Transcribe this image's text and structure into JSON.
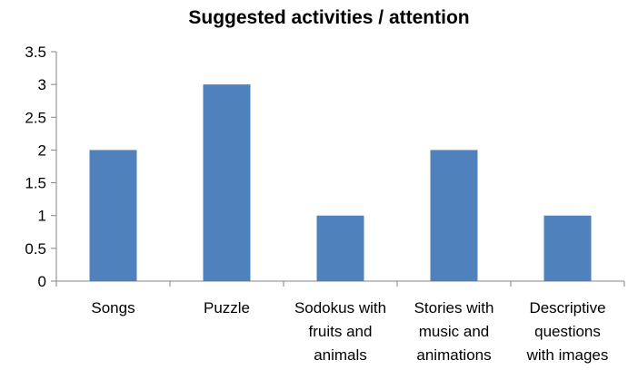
{
  "chart_data": {
    "type": "bar",
    "title": "Suggested activities / attention",
    "xlabel": "",
    "ylabel": "",
    "categories": [
      "Songs",
      "Puzzle",
      "Sodokus with fruits and animals",
      "Stories with music and animations",
      "Descriptive questions with images"
    ],
    "category_lines": [
      [
        "Songs"
      ],
      [
        "Puzzle"
      ],
      [
        "Sodokus with",
        "fruits and",
        "animals"
      ],
      [
        "Stories with",
        "music and",
        "animations"
      ],
      [
        "Descriptive",
        "questions",
        "with images"
      ]
    ],
    "values": [
      2,
      3,
      1,
      2,
      1
    ],
    "ylim": [
      0,
      3.5
    ],
    "yticks": [
      0,
      0.5,
      1,
      1.5,
      2,
      2.5,
      3,
      3.5
    ],
    "ytick_labels": [
      "0",
      "0.5",
      "1",
      "1.5",
      "2",
      "2.5",
      "3",
      "3.5"
    ],
    "grid": false,
    "legend": "none",
    "colors": {
      "bar": "#4F81BD",
      "axis": "#868686"
    }
  }
}
